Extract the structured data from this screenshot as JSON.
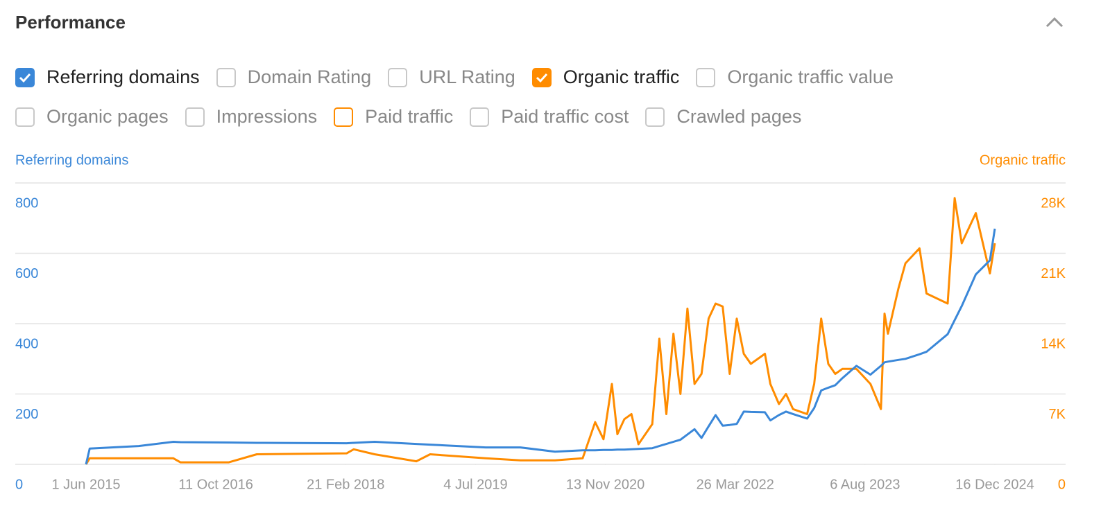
{
  "header": {
    "title": "Performance"
  },
  "filters": [
    [
      {
        "label": "Referring domains",
        "checked": true,
        "color": "#3a87d8"
      },
      {
        "label": "Domain Rating",
        "checked": false
      },
      {
        "label": "URL Rating",
        "checked": false
      },
      {
        "label": "Organic traffic",
        "checked": true,
        "color": "#ff8c00"
      },
      {
        "label": "Organic traffic value",
        "checked": false
      }
    ],
    [
      {
        "label": "Organic pages",
        "checked": false
      },
      {
        "label": "Impressions",
        "checked": false
      },
      {
        "label": "Paid traffic",
        "checked": false,
        "color": "#ff8c00"
      },
      {
        "label": "Paid traffic cost",
        "checked": false
      },
      {
        "label": "Crawled pages",
        "checked": false
      }
    ]
  ],
  "chart_data": {
    "type": "line",
    "y_label": "Referring domains",
    "y2_label": "Organic traffic",
    "grid": true,
    "xlim": [
      "2015-06-01",
      "2024-12-16"
    ],
    "xticks": [
      {
        "value": "2015-06-01",
        "label": "1 Jun 2015"
      },
      {
        "value": "2016-10-11",
        "label": "11 Oct 2016"
      },
      {
        "value": "2018-02-21",
        "label": "21 Feb 2018"
      },
      {
        "value": "2019-07-04",
        "label": "4 Jul 2019"
      },
      {
        "value": "2020-11-13",
        "label": "13 Nov 2020"
      },
      {
        "value": "2022-03-26",
        "label": "26 Mar 2022"
      },
      {
        "value": "2023-08-06",
        "label": "6 Aug 2023"
      },
      {
        "value": "2024-12-16",
        "label": "16 Dec 2024"
      }
    ],
    "ylim": [
      0,
      800
    ],
    "yticks": [
      0,
      200,
      400,
      600,
      800
    ],
    "y2lim": [
      0,
      28000
    ],
    "y2ticks": [
      0,
      {
        "value": 7000,
        "label": "7K"
      },
      {
        "value": 14000,
        "label": "14K"
      },
      {
        "value": 21000,
        "label": "21K"
      },
      {
        "value": 28000,
        "label": "28K"
      }
    ],
    "x": [
      "2015-06-01",
      "2015-06-15",
      "2015-12-20",
      "2016-05-01",
      "2016-05-28",
      "2016-11-30",
      "2017-03-17",
      "2018-02-25",
      "2018-03-24",
      "2018-06-12",
      "2018-11-19",
      "2019-01-11",
      "2019-08-12",
      "2019-12-23",
      "2020-05-04",
      "2020-08-18",
      "2020-10-05",
      "2020-11-06",
      "2020-12-08",
      "2020-12-29",
      "2021-01-25",
      "2021-02-21",
      "2021-03-20",
      "2021-05-12",
      "2021-06-08",
      "2021-07-05",
      "2021-08-01",
      "2021-08-28",
      "2021-09-24",
      "2021-10-21",
      "2021-11-17",
      "2021-12-14",
      "2022-01-10",
      "2022-02-06",
      "2022-03-05",
      "2022-04-01",
      "2022-04-28",
      "2022-05-25",
      "2022-07-18",
      "2022-08-08",
      "2022-09-10",
      "2022-10-07",
      "2022-11-03",
      "2022-12-27",
      "2023-01-23",
      "2023-02-19",
      "2023-03-18",
      "2023-04-14",
      "2023-05-11",
      "2023-07-04",
      "2023-08-27",
      "2023-10-06",
      "2023-10-20",
      "2023-11-02",
      "2023-12-12",
      "2024-01-08",
      "2024-03-02",
      "2024-03-29",
      "2024-06-18",
      "2024-07-15",
      "2024-08-11",
      "2024-10-04",
      "2024-11-27",
      "2024-12-16"
    ],
    "series": [
      {
        "name": "Referring domains",
        "color": "#3a87d8",
        "axis": "y",
        "values": [
          0,
          45,
          52,
          64,
          63,
          62,
          61,
          60,
          61,
          64,
          58,
          56,
          48,
          48,
          36,
          40,
          40,
          41,
          41,
          42,
          42,
          43,
          44,
          46,
          52,
          58,
          64,
          70,
          85,
          100,
          75,
          108,
          140,
          110,
          112,
          115,
          150,
          149,
          148,
          125,
          140,
          150,
          143,
          130,
          160,
          210,
          218,
          225,
          245,
          280,
          255,
          280,
          290,
          292,
          297,
          300,
          313,
          320,
          370,
          410,
          450,
          540,
          580,
          670
        ]
      },
      {
        "name": "Organic traffic",
        "color": "#ff8c00",
        "axis": "y2",
        "values": [
          0,
          600,
          600,
          600,
          200,
          200,
          1000,
          1100,
          1500,
          1000,
          300,
          1000,
          600,
          400,
          400,
          600,
          4200,
          2500,
          8000,
          3000,
          4500,
          5000,
          2000,
          4000,
          12500,
          5000,
          13000,
          7000,
          15500,
          8000,
          9000,
          14500,
          16000,
          15700,
          9000,
          14500,
          11000,
          10000,
          11000,
          8000,
          6000,
          7000,
          5500,
          5000,
          8000,
          14500,
          10000,
          9000,
          9500,
          9500,
          8000,
          5500,
          15000,
          13000,
          17500,
          20000,
          21500,
          17000,
          16000,
          26500,
          22000,
          25000,
          19000,
          22000
        ]
      }
    ]
  }
}
